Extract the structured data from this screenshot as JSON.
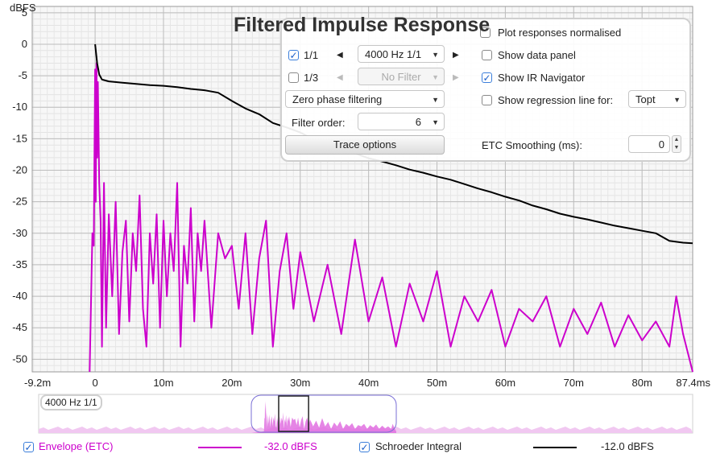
{
  "chart_data": {
    "type": "line",
    "title": "Filtered Impulse Response",
    "ylabel": "dBFS",
    "xlabel": "",
    "xlim": [
      -9.2,
      87.4
    ],
    "ylim": [
      -52,
      6
    ],
    "x_ticks": [
      "-9.2m",
      "0",
      "10m",
      "20m",
      "30m",
      "40m",
      "50m",
      "60m",
      "70m",
      "80m",
      "87.4ms"
    ],
    "y_ticks": [
      "5",
      "0",
      "-5",
      "-10",
      "-15",
      "-20",
      "-25",
      "-30",
      "-35",
      "-40",
      "-45",
      "-50"
    ],
    "grid": true,
    "series": [
      {
        "name": "Schroeder Integral",
        "color": "#000000",
        "x": [
          0,
          0.3,
          0.6,
          1,
          2,
          4,
          6,
          8,
          10,
          12,
          14,
          16,
          18,
          20,
          22,
          24,
          26,
          28,
          30,
          32,
          34,
          36,
          38,
          40,
          42,
          44,
          46,
          48,
          50,
          52,
          54,
          56,
          58,
          60,
          62,
          64,
          66,
          68,
          70,
          72,
          74,
          76,
          78,
          80,
          82,
          84,
          86,
          87.4
        ],
        "y": [
          0,
          -3,
          -4.8,
          -5.6,
          -5.9,
          -6.1,
          -6.3,
          -6.5,
          -6.6,
          -6.8,
          -7.1,
          -7.3,
          -7.7,
          -9.0,
          -10.2,
          -11.1,
          -12.5,
          -13.2,
          -14.0,
          -15.1,
          -15.8,
          -16.5,
          -17.3,
          -18.1,
          -18.6,
          -19.2,
          -19.9,
          -20.4,
          -21.0,
          -21.5,
          -22.2,
          -22.9,
          -23.5,
          -24.2,
          -24.8,
          -25.6,
          -26.2,
          -26.9,
          -27.4,
          -27.8,
          -28.3,
          -28.8,
          -29.2,
          -29.6,
          -30.0,
          -31.2,
          -31.5,
          -31.6
        ]
      },
      {
        "name": "Envelope (ETC)",
        "color": "#cc00cc",
        "level": "-32.0 dBFS",
        "x": [
          -0.8,
          -0.4,
          -0.2,
          0,
          0.1,
          0.2,
          0.3,
          0.4,
          0.6,
          0.8,
          1.0,
          1.3,
          1.6,
          2.0,
          2.5,
          3.0,
          3.5,
          4.0,
          4.5,
          5.0,
          5.5,
          6.0,
          6.5,
          7.0,
          7.5,
          8.0,
          8.5,
          9.0,
          9.5,
          10.0,
          10.5,
          11.0,
          11.5,
          12.0,
          12.5,
          13.0,
          13.5,
          14.0,
          14.5,
          15.0,
          15.5,
          16.0,
          17.0,
          18.0,
          19.0,
          20.0,
          21.0,
          22.0,
          23.0,
          24.0,
          25.0,
          26.0,
          27.0,
          28.0,
          29.0,
          30.0,
          32.0,
          34.0,
          36.0,
          38.0,
          40.0,
          42.0,
          44.0,
          46.0,
          48.0,
          50.0,
          52.0,
          54.0,
          56.0,
          58.0,
          60.0,
          62.0,
          64.0,
          66.0,
          68.0,
          70.0,
          72.0,
          74.0,
          76.0,
          78.0,
          80.0,
          82.0,
          84.0,
          85.0,
          86.0,
          87.4
        ],
        "y": [
          -52,
          -30,
          -32,
          -4,
          -25,
          -3,
          -18,
          -6,
          -22,
          -28,
          -48,
          -22,
          -45,
          -27,
          -40,
          -25,
          -46,
          -33,
          -28,
          -44,
          -30,
          -36,
          -24,
          -42,
          -48,
          -30,
          -38,
          -27,
          -45,
          -28,
          -40,
          -30,
          -36,
          -22,
          -48,
          -32,
          -38,
          -26,
          -44,
          -30,
          -36,
          -28,
          -45,
          -30,
          -34,
          -32,
          -42,
          -30,
          -46,
          -34,
          -28,
          -48,
          -36,
          -30,
          -42,
          -33,
          -44,
          -35,
          -46,
          -31,
          -44,
          -37,
          -48,
          -38,
          -44,
          -36,
          -48,
          -40,
          -44,
          -39,
          -48,
          -42,
          -44,
          -40,
          -48,
          -42,
          -46,
          -41,
          -48,
          -43,
          -47,
          -44,
          -48,
          -40,
          -46,
          -52
        ]
      }
    ]
  },
  "panel": {
    "plot_normalised_label": "Plot responses normalised",
    "row1_check_label": "1/1",
    "row1_filter": "4000 Hz 1/1",
    "row2_check_label": "1/3",
    "row2_filter": "No Filter",
    "show_data_panel_label": "Show data panel",
    "show_ir_navigator_label": "Show IR Navigator",
    "show_regression_label": "Show regression line for:",
    "regression_option": "Topt",
    "phase_mode": "Zero phase filtering",
    "filter_order_label": "Filter order:",
    "filter_order_value": "6",
    "trace_options_label": "Trace options",
    "etc_smoothing_label": "ETC Smoothing (ms):",
    "etc_smoothing_value": "0",
    "states": {
      "row1": true,
      "row2": false,
      "plot_normalised": false,
      "show_data_panel": false,
      "show_ir_navigator": true,
      "show_regression": false
    }
  },
  "navigator": {
    "label": "4000 Hz 1/1"
  },
  "legend": {
    "envelope_label": "Envelope (ETC)",
    "envelope_value": "-32.0 dBFS",
    "envelope_color": "#cc00cc",
    "envelope_checked": true,
    "schroeder_label": "Schroeder Integral",
    "schroeder_value": "-12.0 dBFS",
    "schroeder_color": "#000000",
    "schroeder_checked": true
  }
}
